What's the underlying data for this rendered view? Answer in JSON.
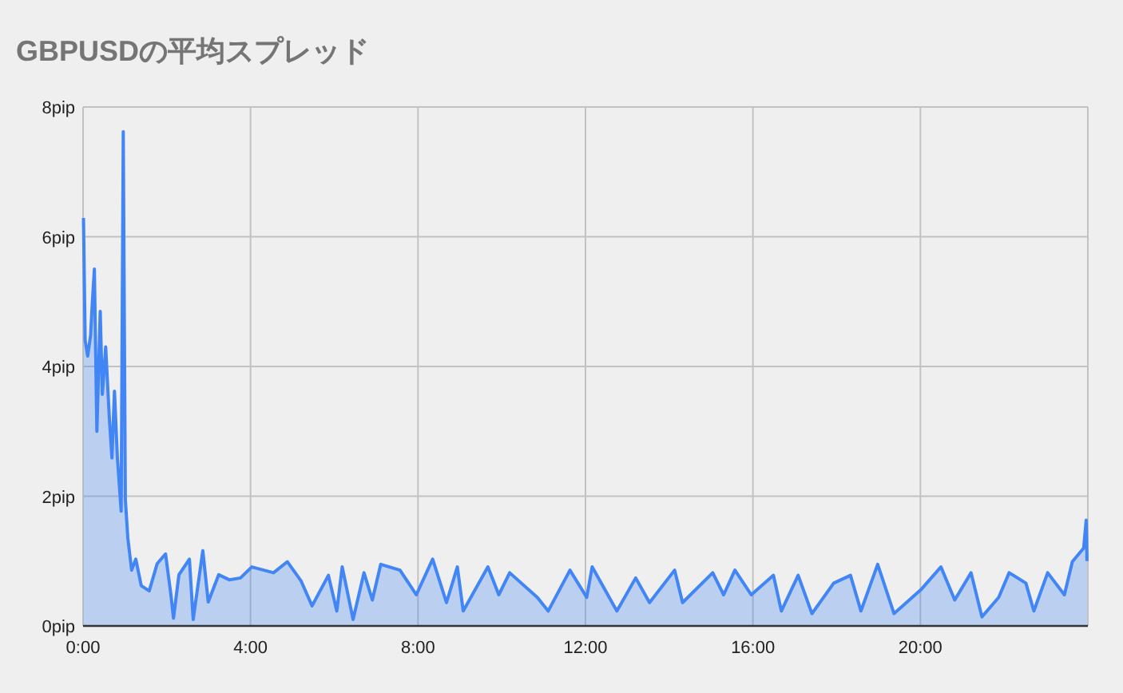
{
  "chart_data": {
    "type": "area",
    "title": "GBPUSDの平均スプレッド",
    "x": [
      0.01,
      0.05,
      0.11,
      0.18,
      0.22,
      0.27,
      0.33,
      0.41,
      0.46,
      0.54,
      0.63,
      0.69,
      0.75,
      0.82,
      0.91,
      0.96,
      1.01,
      1.07,
      1.16,
      1.26,
      1.39,
      1.58,
      1.77,
      1.97,
      2.1,
      2.16,
      2.29,
      2.54,
      2.63,
      2.86,
      2.99,
      3.24,
      3.5,
      3.76,
      4.03,
      4.55,
      4.88,
      5.21,
      5.47,
      5.86,
      6.06,
      6.19,
      6.45,
      6.71,
      6.91,
      7.11,
      7.57,
      7.96,
      8.35,
      8.68,
      8.94,
      9.08,
      9.67,
      9.93,
      10.19,
      10.85,
      11.11,
      11.63,
      12.03,
      12.16,
      12.75,
      13.2,
      13.53,
      14.13,
      14.32,
      15.04,
      15.3,
      15.57,
      15.96,
      16.49,
      16.68,
      17.08,
      17.41,
      17.93,
      18.33,
      18.58,
      18.98,
      19.37,
      20.03,
      20.49,
      20.82,
      21.21,
      21.47,
      21.87,
      22.12,
      22.52,
      22.71,
      23.04,
      23.44,
      23.63,
      23.9,
      23.96,
      23.98
    ],
    "series": [
      {
        "color": "#4285f4",
        "values": [
          6.29,
          4.4,
          4.16,
          4.48,
          4.97,
          5.5,
          3.0,
          4.85,
          3.57,
          4.3,
          3.18,
          2.59,
          3.62,
          2.59,
          1.77,
          7.62,
          1.95,
          1.35,
          0.86,
          1.03,
          0.62,
          0.54,
          0.96,
          1.11,
          0.47,
          0.12,
          0.79,
          1.03,
          0.1,
          1.16,
          0.37,
          0.79,
          0.71,
          0.74,
          0.91,
          0.82,
          0.99,
          0.69,
          0.31,
          0.78,
          0.23,
          0.91,
          0.1,
          0.82,
          0.4,
          0.95,
          0.86,
          0.48,
          1.03,
          0.36,
          0.91,
          0.23,
          0.91,
          0.48,
          0.82,
          0.44,
          0.23,
          0.86,
          0.44,
          0.91,
          0.23,
          0.74,
          0.36,
          0.86,
          0.36,
          0.82,
          0.48,
          0.86,
          0.48,
          0.78,
          0.23,
          0.78,
          0.19,
          0.66,
          0.78,
          0.23,
          0.95,
          0.19,
          0.57,
          0.91,
          0.4,
          0.82,
          0.14,
          0.44,
          0.82,
          0.66,
          0.23,
          0.82,
          0.48,
          0.99,
          1.2,
          1.63,
          1.0
        ]
      }
    ],
    "xlim": [
      0,
      24
    ],
    "xticks": [
      {
        "value": 0,
        "label": "0:00"
      },
      {
        "value": 4,
        "label": "4:00"
      },
      {
        "value": 8,
        "label": "8:00"
      },
      {
        "value": 12,
        "label": "12:00"
      },
      {
        "value": 16,
        "label": "16:00"
      },
      {
        "value": 20,
        "label": "20:00"
      }
    ],
    "ylim": [
      0,
      8
    ],
    "yticks": [
      {
        "value": 0,
        "label": "0pip"
      },
      {
        "value": 2,
        "label": "2pip"
      },
      {
        "value": 4,
        "label": "4pip"
      },
      {
        "value": 6,
        "label": "6pip"
      },
      {
        "value": 8,
        "label": "8pip"
      }
    ],
    "grid": true
  }
}
